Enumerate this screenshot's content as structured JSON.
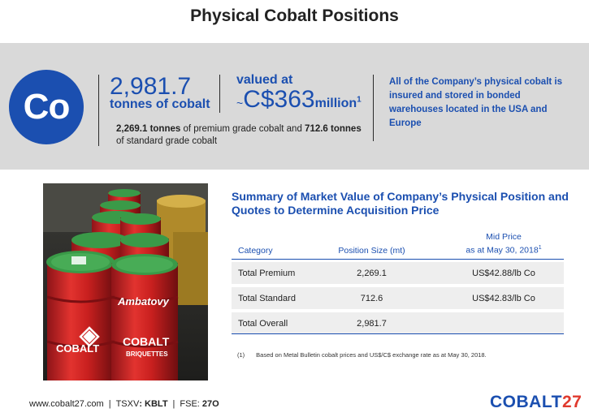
{
  "title": "Physical Cobalt Positions",
  "highlights": {
    "element_symbol": "Co",
    "tonnes_value": "2,981.7",
    "tonnes_label": "tonnes of cobalt",
    "valued_label": "valued at",
    "valued_prefix": "~",
    "valued_amount": "C$363",
    "valued_unit": "million",
    "valued_footnote_ref": "1",
    "premium_tonnes": "2,269.1 tonnes",
    "premium_text": " of premium grade cobalt and ",
    "standard_tonnes": "712.6 tonnes",
    "standard_text": " of standard grade cobalt",
    "insured_text": "All of the Company’s physical cobalt is insured and stored in bonded warehouses located in the USA and Europe"
  },
  "summary": {
    "title": "Summary of Market Value of Company’s Physical Position and Quotes to Determine Acquisition Price",
    "headers": {
      "category": "Category",
      "position_size": "Position Size (mt)",
      "mid_price_line1": "Mid Price",
      "mid_price_line2": "as at May 30, 2018",
      "mid_price_ref": "1"
    },
    "rows": [
      {
        "category": "Total Premium",
        "position_size": "2,269.1",
        "mid_price": "US$42.88/lb Co"
      },
      {
        "category": "Total Standard",
        "position_size": "712.6",
        "mid_price": "US$42.83/lb Co"
      },
      {
        "category": "Total Overall",
        "position_size": "2,981.7",
        "mid_price": ""
      }
    ],
    "footnote_num": "(1)",
    "footnote_text": "Based on Metal Bulletin cobalt prices and US$/C$ exchange rate as at May 30, 2018."
  },
  "photo": {
    "drum_brand": "Ambatovy",
    "drum_label": "COBALT",
    "drum_sublabel": "BRIQUETTES"
  },
  "footer": {
    "website": "www.cobalt27.com",
    "sep": "|",
    "tsxv_label": "TSXV",
    "tsxv_ticker": ": KBLT",
    "fse_label": "FSE: ",
    "fse_ticker": "27O"
  },
  "logo": {
    "text": "COBALT",
    "number": "27"
  },
  "colors": {
    "brand_blue": "#1b4fb0",
    "band_gray": "#d9d9d9",
    "drum_red": "#d8262b",
    "lid_green": "#3a9a48",
    "logo_accent": "#e03a2e"
  }
}
